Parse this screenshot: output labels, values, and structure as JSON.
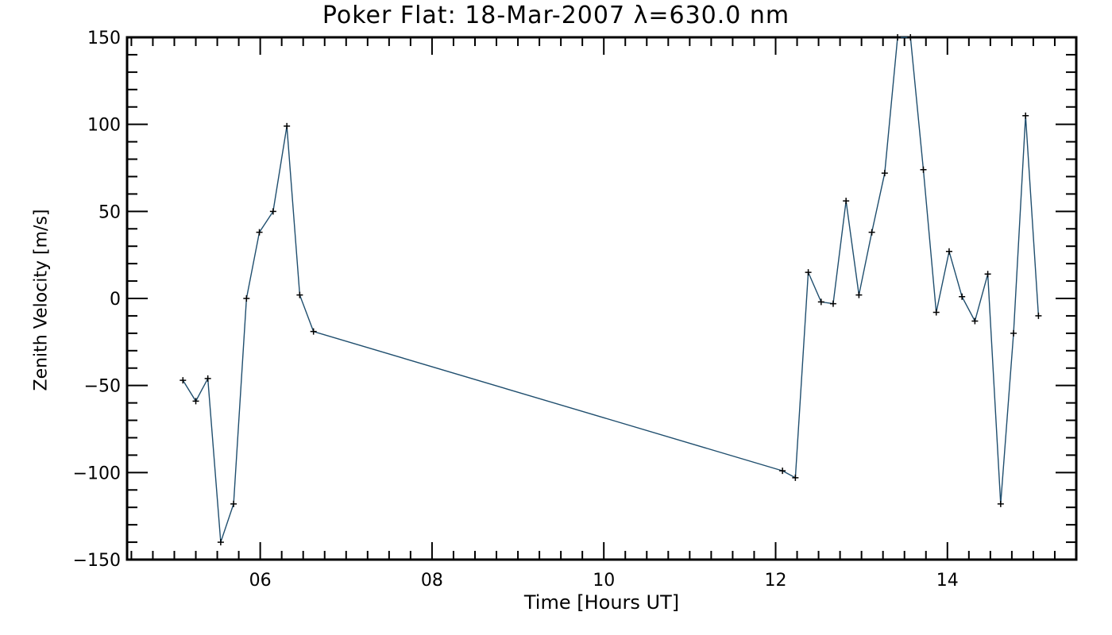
{
  "chart_data": {
    "type": "line",
    "title": "Poker Flat: 18-Mar-2007 λ=630.0 nm",
    "xlabel": "Time [Hours UT]",
    "ylabel": "Zenith Velocity [m/s]",
    "xlim": [
      4.45,
      15.5
    ],
    "ylim": [
      -150,
      150
    ],
    "x_ticks": [
      6,
      8,
      10,
      12,
      14
    ],
    "x_tick_labels": [
      "06",
      "08",
      "10",
      "12",
      "14"
    ],
    "y_ticks": [
      -150,
      -100,
      -50,
      0,
      50,
      100,
      150
    ],
    "y_tick_labels": [
      "−150",
      "−100",
      "−50",
      "0",
      "50",
      "100",
      "150"
    ],
    "series": [
      {
        "color": "#1f4e6e",
        "marker": "plus",
        "x": [
          5.1,
          5.25,
          5.39,
          5.54,
          5.69,
          5.84,
          5.99,
          6.15,
          6.31,
          6.46,
          6.62,
          12.08,
          12.23,
          12.38,
          12.53,
          12.67,
          12.82,
          12.97,
          13.12,
          13.27,
          13.42,
          13.57,
          13.72,
          13.87,
          14.02,
          14.17,
          14.32,
          14.47,
          14.62,
          14.77,
          14.91,
          15.06
        ],
        "y": [
          -47,
          -59,
          -46,
          -140,
          -118,
          0,
          38,
          50,
          99,
          2,
          -19,
          -99,
          -103,
          15,
          -2,
          -3,
          56,
          2,
          38,
          72,
          150,
          150,
          74,
          -8,
          27,
          1,
          -13,
          14,
          -118,
          -20,
          105,
          -10
        ]
      }
    ]
  }
}
